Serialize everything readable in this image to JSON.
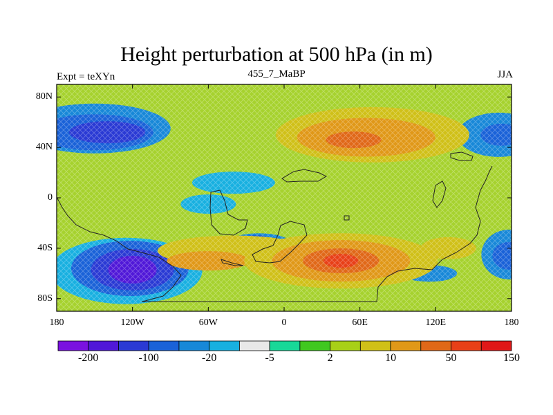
{
  "title": "Height perturbation at 500 hPa (in m)",
  "subtitle_left": "Expt = teXYn",
  "subtitle_center": "455_7_MaBP",
  "subtitle_right": "JJA",
  "y_ticks": [
    "80N",
    "40N",
    "0",
    "40S",
    "80S"
  ],
  "x_ticks": [
    "180",
    "120W",
    "60W",
    "0",
    "60E",
    "120E",
    "180"
  ],
  "colorbar": {
    "colors": [
      "#7a12e0",
      "#5018d8",
      "#2a3ad4",
      "#1a62d8",
      "#1888d8",
      "#18b0e0",
      "#e8e8e8",
      "#18d898",
      "#40c820",
      "#a8d018",
      "#d0c018",
      "#e09818",
      "#e06818",
      "#e84018",
      "#e01818"
    ],
    "labels": [
      "-200",
      "-100",
      "-20",
      "-5",
      "2",
      "10",
      "50",
      "150"
    ]
  },
  "map_data": {
    "type": "filled-contour-map",
    "variable": "500 hPa height perturbation",
    "units": "m",
    "lon_range": [
      -180,
      180
    ],
    "lat_range": [
      -90,
      90
    ],
    "features": [
      {
        "kind": "negative",
        "center_lon": -145,
        "center_lat": 52,
        "description": "blue anomaly over North Pacific"
      },
      {
        "kind": "positive",
        "center_lon": 70,
        "center_lat": 48,
        "description": "orange anomaly over Eurasia"
      },
      {
        "kind": "negative",
        "center_lon": 165,
        "center_lat": 50,
        "description": "blue anomaly over far NW Pacific"
      },
      {
        "kind": "negative",
        "center_lon": -120,
        "center_lat": -58,
        "description": "strong purple anomaly over South Pacific"
      },
      {
        "kind": "positive",
        "center_lon": 45,
        "center_lat": -50,
        "description": "strong orange-red anomaly south of Africa"
      },
      {
        "kind": "positive",
        "center_lon": -40,
        "center_lat": -40,
        "description": "yellow-orange band over South Atlantic"
      },
      {
        "kind": "negative",
        "center_lon": 175,
        "center_lat": -45,
        "description": "blue anomaly east of New Zealand"
      },
      {
        "kind": "negative",
        "center_lon": -20,
        "center_lat": -35,
        "description": "blue anomaly over South Atlantic"
      }
    ]
  }
}
